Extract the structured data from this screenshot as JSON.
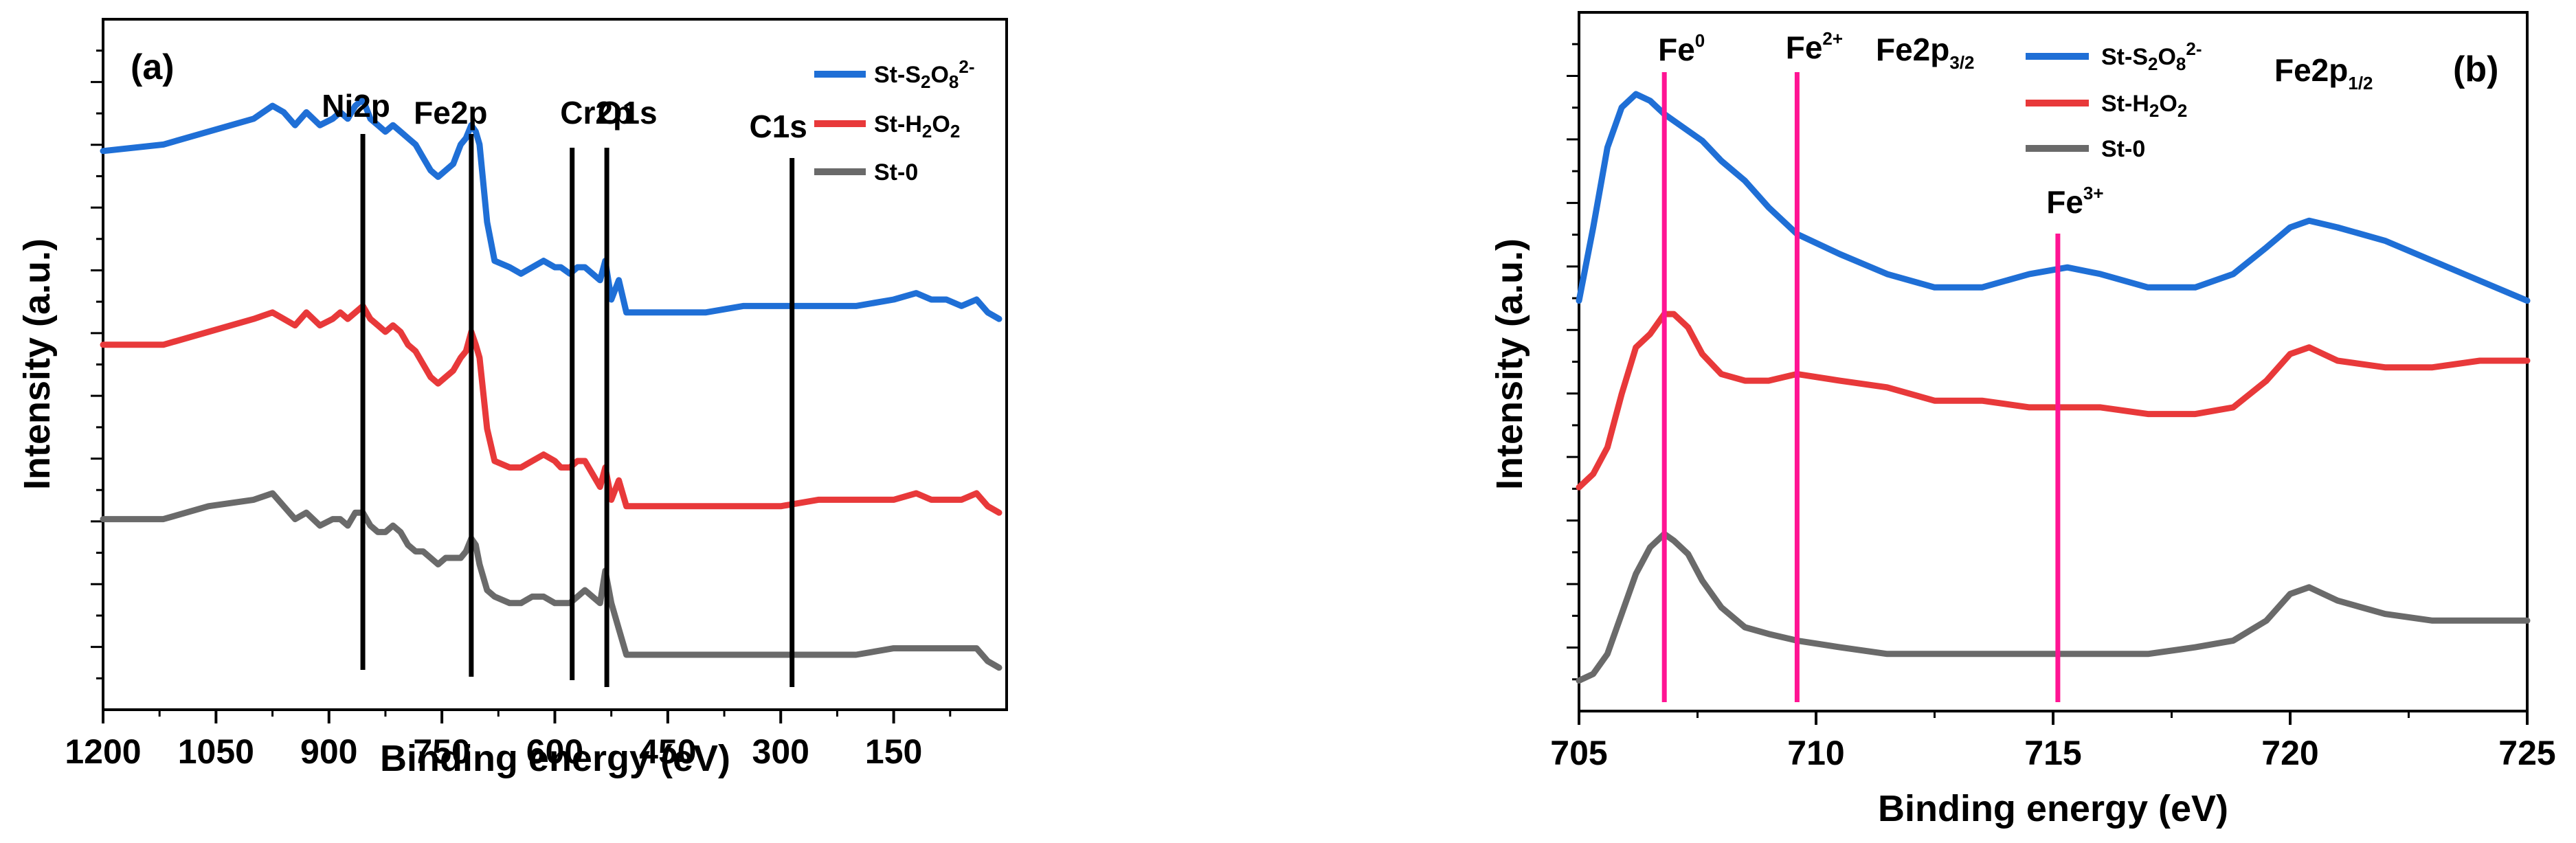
{
  "chart_data": [
    {
      "type": "line",
      "panel_label": "(a)",
      "xlabel": "Binding energy (eV)",
      "ylabel": "Intensity (a.u.)",
      "xlim": [
        1200,
        0
      ],
      "xlim_note": "axis reversed: high binding energy on the left",
      "ylim": [
        0,
        1
      ],
      "x_ticks": [
        1200,
        1050,
        900,
        750,
        600,
        450,
        300,
        150
      ],
      "x_tick_labels": [
        "1200",
        "1050",
        "900",
        "750",
        "600",
        "450",
        "300",
        "150"
      ],
      "y_tick_labels_shown": false,
      "legend": {
        "position": "top-right",
        "entries": [
          "St-S2O8 2-",
          "St-H2O2",
          "St-0"
        ]
      },
      "annotations": [
        {
          "text": "Ni2p",
          "x": 855
        },
        {
          "text": "Fe2p",
          "x": 711
        },
        {
          "text": "Cr2p",
          "x": 577
        },
        {
          "text": "O1s",
          "x": 531
        },
        {
          "text": "C1s",
          "x": 285
        }
      ],
      "series": [
        {
          "name": "St-S2O8 2-",
          "color": "#1f6fd6",
          "x": [
            1200,
            1120,
            1060,
            1000,
            975,
            960,
            945,
            930,
            912,
            895,
            885,
            875,
            865,
            855,
            845,
            835,
            825,
            815,
            805,
            795,
            785,
            775,
            765,
            755,
            745,
            735,
            725,
            718,
            711,
            705,
            700,
            690,
            680,
            660,
            645,
            630,
            615,
            600,
            592,
            580,
            570,
            560,
            550,
            540,
            533,
            525,
            515,
            505,
            490,
            450,
            400,
            350,
            300,
            250,
            200,
            150,
            120,
            100,
            80,
            60,
            40,
            25,
            10
          ],
          "y": [
            0.83,
            0.84,
            0.86,
            0.88,
            0.9,
            0.89,
            0.87,
            0.89,
            0.87,
            0.88,
            0.89,
            0.88,
            0.9,
            0.91,
            0.88,
            0.87,
            0.86,
            0.87,
            0.86,
            0.85,
            0.84,
            0.82,
            0.8,
            0.79,
            0.8,
            0.81,
            0.84,
            0.85,
            0.87,
            0.86,
            0.84,
            0.72,
            0.66,
            0.65,
            0.64,
            0.65,
            0.66,
            0.65,
            0.65,
            0.64,
            0.65,
            0.65,
            0.64,
            0.63,
            0.66,
            0.6,
            0.63,
            0.58,
            0.58,
            0.58,
            0.58,
            0.59,
            0.59,
            0.59,
            0.59,
            0.6,
            0.61,
            0.6,
            0.6,
            0.59,
            0.6,
            0.58,
            0.57
          ]
        },
        {
          "name": "St-H2O2",
          "color": "#e8393a",
          "x": [
            1200,
            1120,
            1060,
            1000,
            975,
            960,
            945,
            930,
            912,
            895,
            885,
            875,
            865,
            855,
            845,
            835,
            825,
            815,
            805,
            795,
            785,
            775,
            765,
            755,
            745,
            735,
            725,
            718,
            711,
            705,
            700,
            690,
            680,
            660,
            645,
            630,
            615,
            600,
            592,
            580,
            570,
            560,
            550,
            540,
            533,
            525,
            515,
            505,
            490,
            450,
            400,
            350,
            300,
            250,
            200,
            150,
            120,
            100,
            80,
            60,
            40,
            25,
            10
          ],
          "y": [
            0.53,
            0.53,
            0.55,
            0.57,
            0.58,
            0.57,
            0.56,
            0.58,
            0.56,
            0.57,
            0.58,
            0.57,
            0.58,
            0.59,
            0.57,
            0.56,
            0.55,
            0.56,
            0.55,
            0.53,
            0.52,
            0.5,
            0.48,
            0.47,
            0.48,
            0.49,
            0.51,
            0.52,
            0.55,
            0.53,
            0.51,
            0.4,
            0.35,
            0.34,
            0.34,
            0.35,
            0.36,
            0.35,
            0.34,
            0.34,
            0.35,
            0.35,
            0.33,
            0.31,
            0.34,
            0.29,
            0.32,
            0.28,
            0.28,
            0.28,
            0.28,
            0.28,
            0.28,
            0.29,
            0.29,
            0.29,
            0.3,
            0.29,
            0.29,
            0.29,
            0.3,
            0.28,
            0.27
          ]
        },
        {
          "name": "St-0",
          "color": "#6a6a6a",
          "x": [
            1200,
            1120,
            1060,
            1000,
            975,
            960,
            945,
            930,
            912,
            895,
            885,
            875,
            865,
            855,
            845,
            835,
            825,
            815,
            805,
            795,
            785,
            775,
            765,
            755,
            745,
            735,
            725,
            718,
            711,
            705,
            700,
            690,
            680,
            660,
            645,
            630,
            615,
            600,
            592,
            580,
            570,
            560,
            550,
            540,
            533,
            525,
            515,
            505,
            490,
            450,
            400,
            350,
            300,
            250,
            200,
            150,
            120,
            100,
            80,
            60,
            40,
            25,
            10
          ],
          "y": [
            0.26,
            0.26,
            0.28,
            0.29,
            0.3,
            0.28,
            0.26,
            0.27,
            0.25,
            0.26,
            0.26,
            0.25,
            0.27,
            0.27,
            0.25,
            0.24,
            0.24,
            0.25,
            0.24,
            0.22,
            0.21,
            0.21,
            0.2,
            0.19,
            0.2,
            0.2,
            0.2,
            0.21,
            0.23,
            0.22,
            0.19,
            0.15,
            0.14,
            0.13,
            0.13,
            0.14,
            0.14,
            0.13,
            0.13,
            0.13,
            0.14,
            0.15,
            0.14,
            0.13,
            0.18,
            0.13,
            0.09,
            0.05,
            0.05,
            0.05,
            0.05,
            0.05,
            0.05,
            0.05,
            0.05,
            0.06,
            0.06,
            0.06,
            0.06,
            0.06,
            0.06,
            0.04,
            0.03
          ]
        }
      ]
    },
    {
      "type": "line",
      "panel_label": "(b)",
      "xlabel": "Binding energy (eV)",
      "ylabel": "Intensity (a.u.)",
      "xlim": [
        705,
        725
      ],
      "ylim": [
        0,
        1
      ],
      "x_ticks": [
        705,
        710,
        715,
        720,
        725
      ],
      "x_tick_labels": [
        "705",
        "710",
        "715",
        "720",
        "725"
      ],
      "y_tick_labels_shown": false,
      "legend": {
        "position": "top-center",
        "entries": [
          "St-S2O8 2-",
          "St-H2O2",
          "St-0"
        ]
      },
      "annotations": [
        {
          "text": "Fe",
          "sup": "0",
          "x": 706.8
        },
        {
          "text": "Fe",
          "sup": "2+",
          "x": 709.6
        },
        {
          "text": "Fe",
          "sup": "3+",
          "x": 715.1
        },
        {
          "text": "Fe2p",
          "sub": "3/2",
          "position": "top"
        },
        {
          "text": "Fe2p",
          "sub": "1/2",
          "position": "top-right"
        }
      ],
      "series": [
        {
          "name": "St-S2O8 2-",
          "color": "#1f6fd6",
          "x": [
            705.0,
            705.3,
            705.6,
            705.9,
            706.2,
            706.5,
            706.8,
            707.2,
            707.6,
            708.0,
            708.5,
            709.0,
            709.6,
            710.5,
            711.5,
            712.5,
            713.5,
            714.5,
            715.3,
            716.0,
            717.0,
            718.0,
            718.8,
            719.5,
            720.0,
            720.4,
            721.0,
            722.0,
            723.0,
            724.0,
            725.0
          ],
          "y": [
            0.59,
            0.7,
            0.82,
            0.88,
            0.9,
            0.89,
            0.87,
            0.85,
            0.83,
            0.8,
            0.77,
            0.73,
            0.69,
            0.66,
            0.63,
            0.61,
            0.61,
            0.63,
            0.64,
            0.63,
            0.61,
            0.61,
            0.63,
            0.67,
            0.7,
            0.71,
            0.7,
            0.68,
            0.65,
            0.62,
            0.59
          ]
        },
        {
          "name": "St-H2O2",
          "color": "#e8393a",
          "x": [
            705.0,
            705.3,
            705.6,
            705.9,
            706.2,
            706.5,
            706.8,
            707.0,
            707.3,
            707.6,
            708.0,
            708.5,
            709.0,
            709.6,
            710.5,
            711.5,
            712.5,
            713.5,
            714.5,
            715.3,
            716.0,
            717.0,
            718.0,
            718.8,
            719.5,
            720.0,
            720.4,
            721.0,
            722.0,
            723.0,
            724.0,
            725.0
          ],
          "y": [
            0.31,
            0.33,
            0.37,
            0.45,
            0.52,
            0.54,
            0.57,
            0.57,
            0.55,
            0.51,
            0.48,
            0.47,
            0.47,
            0.48,
            0.47,
            0.46,
            0.44,
            0.44,
            0.43,
            0.43,
            0.43,
            0.42,
            0.42,
            0.43,
            0.47,
            0.51,
            0.52,
            0.5,
            0.49,
            0.49,
            0.5,
            0.5
          ]
        },
        {
          "name": "St-0",
          "color": "#6a6a6a",
          "x": [
            705.0,
            705.3,
            705.6,
            705.9,
            706.2,
            706.5,
            706.8,
            707.0,
            707.3,
            707.6,
            708.0,
            708.5,
            709.0,
            709.6,
            710.5,
            711.5,
            712.5,
            713.5,
            714.5,
            715.3,
            716.0,
            717.0,
            718.0,
            718.8,
            719.5,
            720.0,
            720.4,
            721.0,
            722.0,
            723.0,
            724.0,
            725.0
          ],
          "y": [
            0.02,
            0.03,
            0.06,
            0.12,
            0.18,
            0.22,
            0.24,
            0.23,
            0.21,
            0.17,
            0.13,
            0.1,
            0.09,
            0.08,
            0.07,
            0.06,
            0.06,
            0.06,
            0.06,
            0.06,
            0.06,
            0.06,
            0.07,
            0.08,
            0.11,
            0.15,
            0.16,
            0.14,
            0.12,
            0.11,
            0.11,
            0.11
          ]
        }
      ]
    }
  ]
}
